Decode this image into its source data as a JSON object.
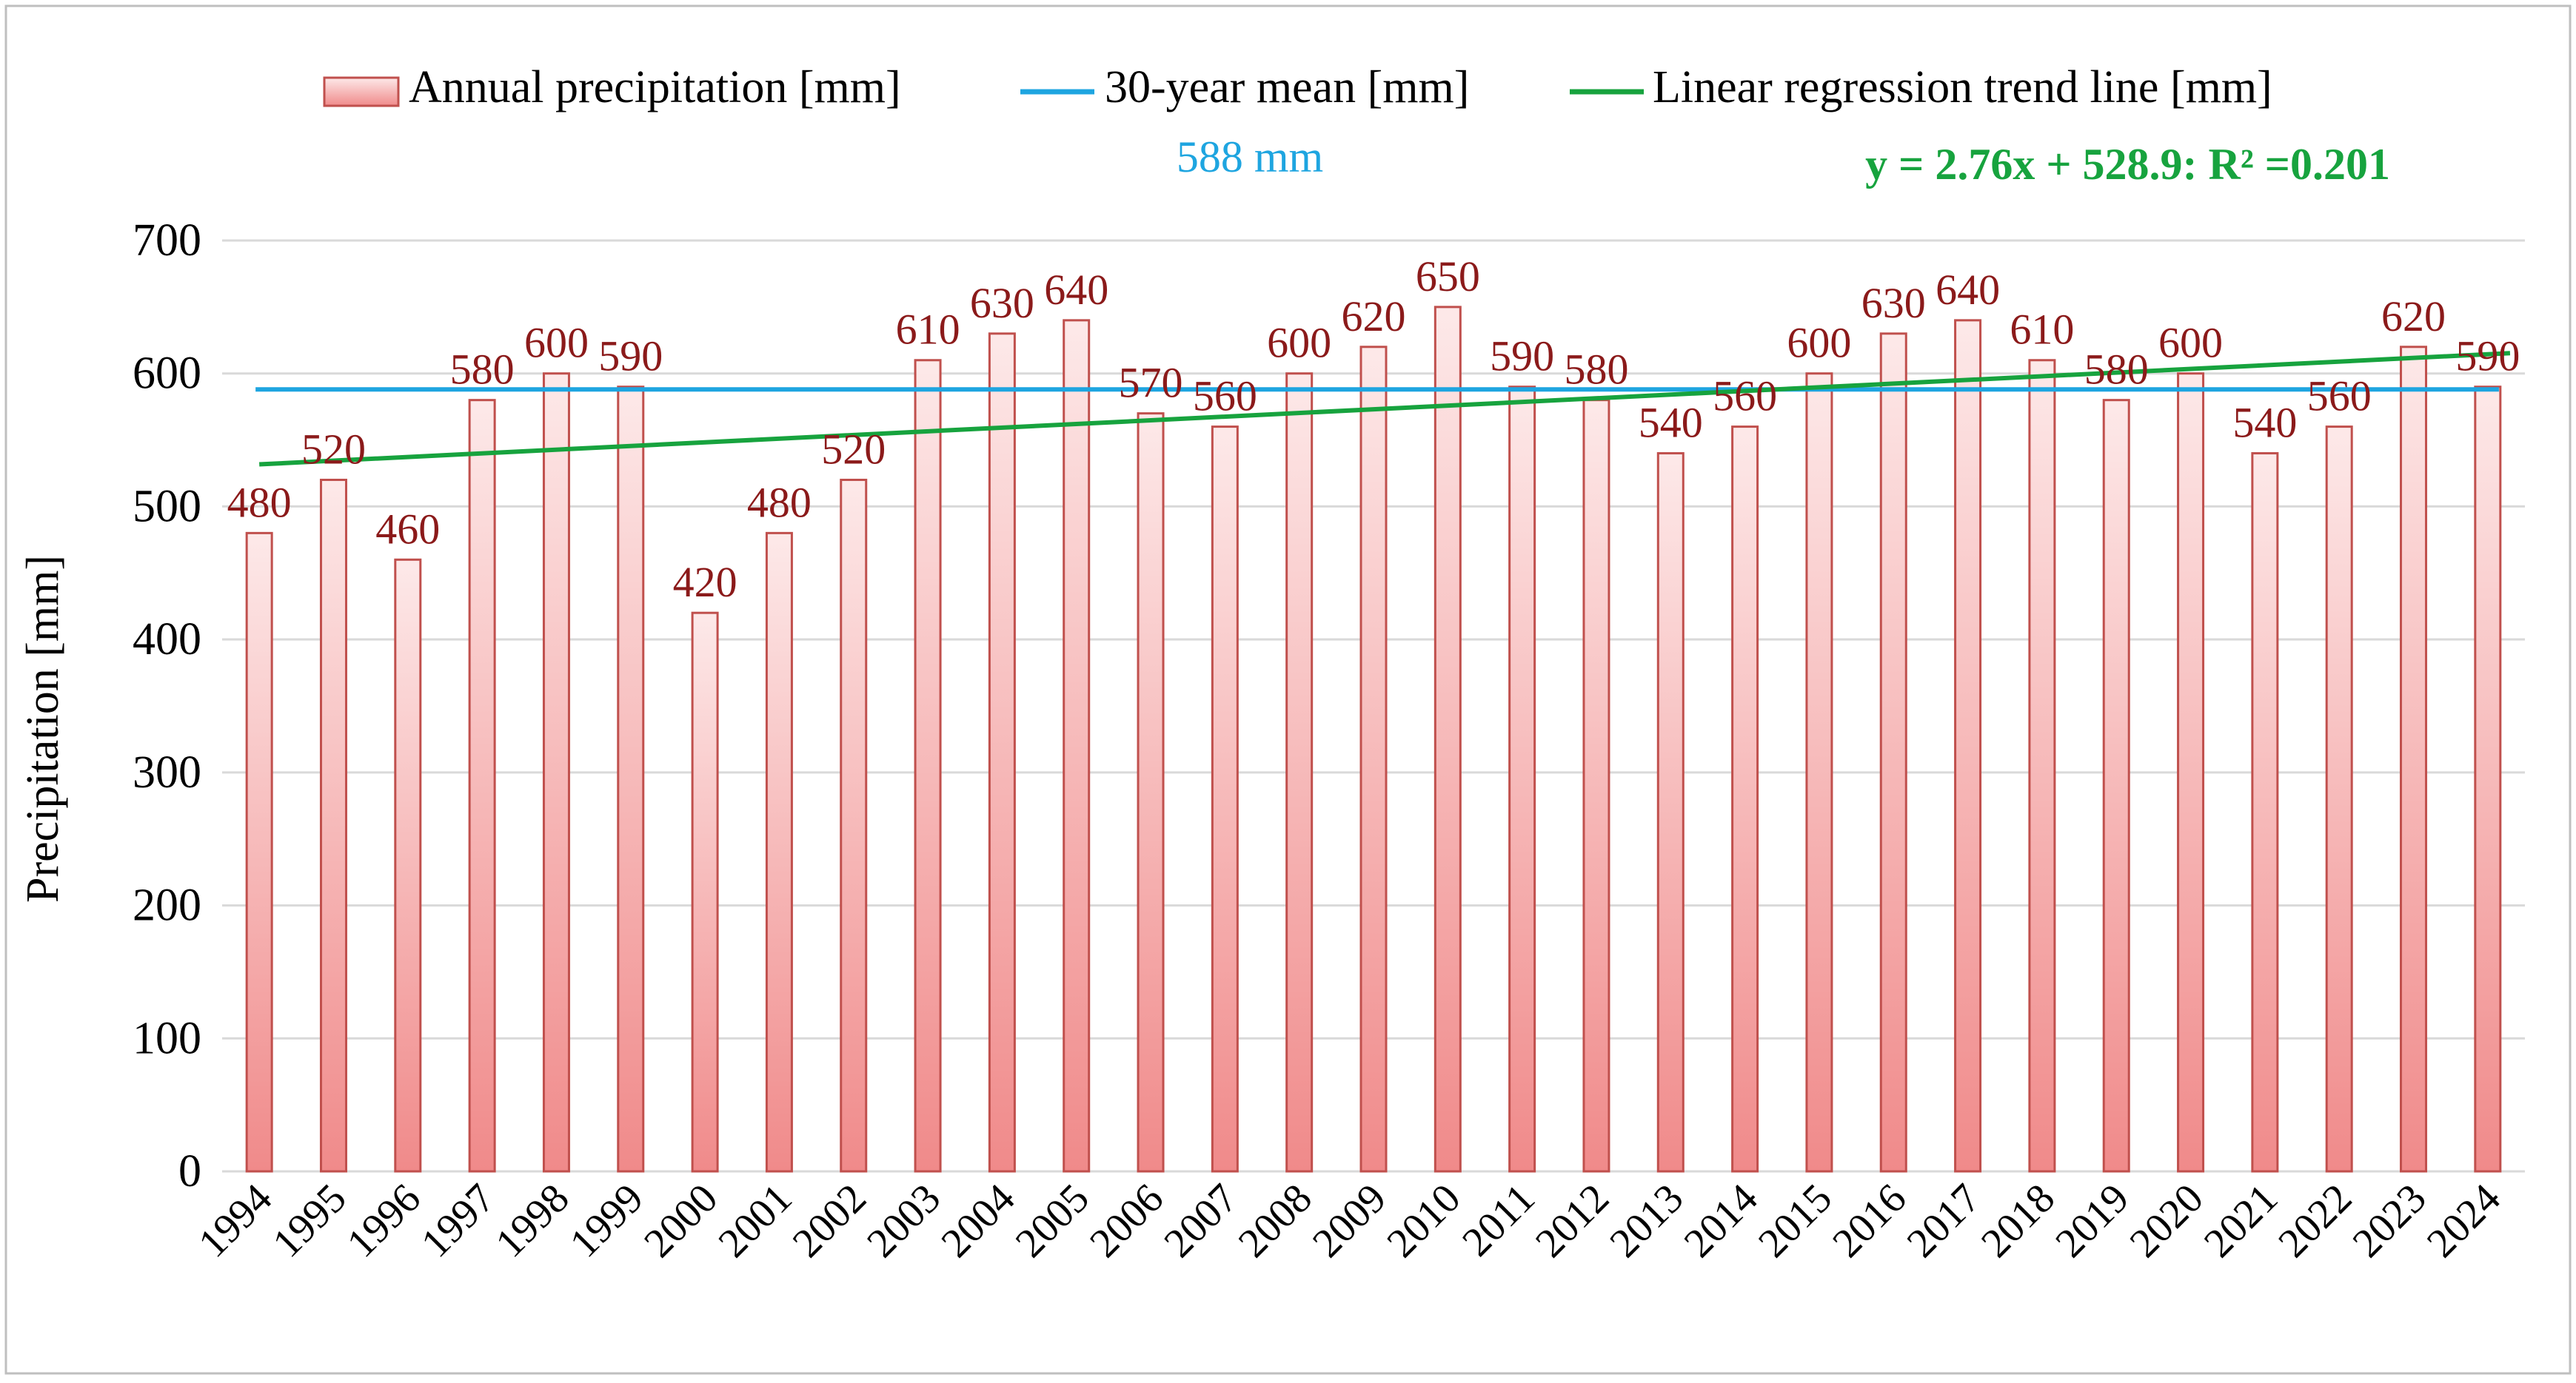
{
  "chart_data": {
    "type": "bar",
    "title": "",
    "xlabel": "",
    "ylabel": "Precipitation  [mm]",
    "ylim": [
      0,
      700
    ],
    "yticks": [
      0,
      100,
      200,
      300,
      400,
      500,
      600,
      700
    ],
    "grid": true,
    "legend_position": "top",
    "categories": [
      "1994",
      "1995",
      "1996",
      "1997",
      "1998",
      "1999",
      "2000",
      "2001",
      "2002",
      "2003",
      "2004",
      "2005",
      "2006",
      "2007",
      "2008",
      "2009",
      "2010",
      "2011",
      "2012",
      "2013",
      "2014",
      "2015",
      "2016",
      "2017",
      "2018",
      "2019",
      "2020",
      "2021",
      "2022",
      "2023",
      "2024"
    ],
    "series": [
      {
        "name": "Annual precipitation [mm]",
        "kind": "bar",
        "values": [
          480,
          520,
          460,
          580,
          600,
          590,
          420,
          480,
          520,
          610,
          630,
          640,
          570,
          560,
          600,
          620,
          650,
          590,
          580,
          540,
          560,
          600,
          630,
          640,
          610,
          580,
          600,
          540,
          560,
          620,
          590
        ],
        "labels": [
          "480",
          "520",
          "460",
          "580",
          "600",
          "590",
          "420",
          "480",
          "520",
          "610",
          "630",
          "640",
          "570",
          "560",
          "600",
          "620",
          "650",
          "590",
          "580",
          "540",
          "560",
          "600",
          "630",
          "640",
          "610",
          "580",
          "600",
          "540",
          "560",
          "620",
          "590"
        ]
      },
      {
        "name": "30-year mean [mm]",
        "kind": "hline",
        "value": 588
      },
      {
        "name": "Linear regression trend line [mm]",
        "kind": "trend",
        "slope": 2.76,
        "intercept": 528.9
      }
    ],
    "annotations": {
      "mean_label": "588 mm",
      "equation": "y = 2.76x + 528.9: R² =0.201"
    },
    "colors": {
      "bar_fill_top": "#fde9e9",
      "bar_fill_bottom": "#f08a8a",
      "bar_stroke": "#c0504d",
      "label": "#8b1a1a",
      "mean": "#1ea5e0",
      "trend": "#17a33e",
      "grid": "#d9d9d9",
      "axis_text": "#000000"
    }
  }
}
